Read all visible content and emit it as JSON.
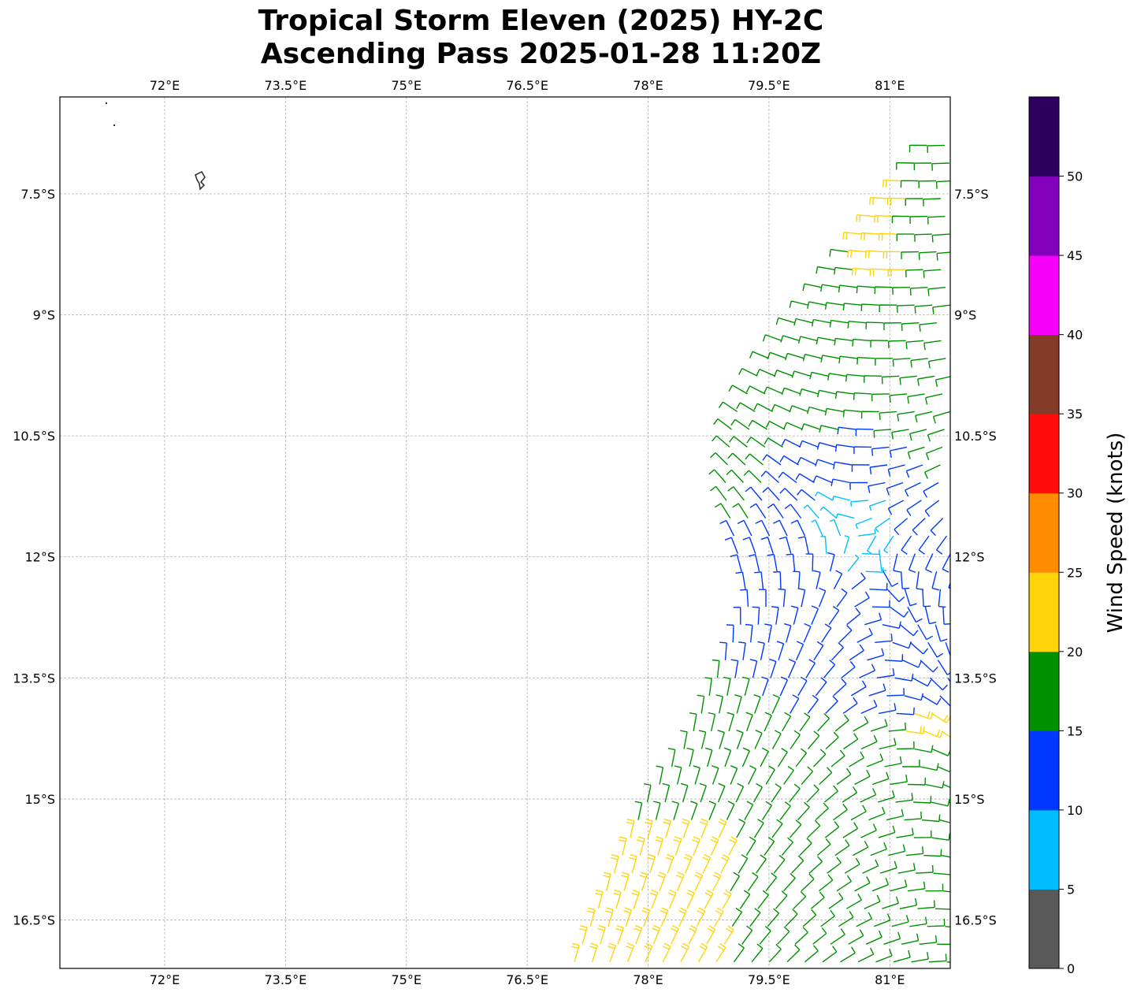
{
  "title": {
    "line1": "Tropical Storm Eleven (2025) HY-2C",
    "line2": "Ascending Pass 2025-01-28 11:20Z"
  },
  "map": {
    "lon_range": [
      70.7,
      81.75
    ],
    "lat_range": [
      -17.1,
      -6.3
    ],
    "lon_ticks": [
      {
        "value": 72,
        "label": "72°E"
      },
      {
        "value": 73.5,
        "label": "73.5°E"
      },
      {
        "value": 75,
        "label": "75°E"
      },
      {
        "value": 76.5,
        "label": "76.5°E"
      },
      {
        "value": 78,
        "label": "78°E"
      },
      {
        "value": 79.5,
        "label": "79.5°E"
      },
      {
        "value": 81,
        "label": "81°E"
      }
    ],
    "lat_ticks": [
      {
        "value": -7.5,
        "label": "7.5°S"
      },
      {
        "value": -9,
        "label": "9°S"
      },
      {
        "value": -10.5,
        "label": "10.5°S"
      },
      {
        "value": -12,
        "label": "12°S"
      },
      {
        "value": -13.5,
        "label": "13.5°S"
      },
      {
        "value": -15,
        "label": "15°S"
      },
      {
        "value": -16.5,
        "label": "16.5°S"
      }
    ],
    "gridlines": true,
    "storm_center": {
      "lon": 80.6,
      "lat": -11.7
    },
    "swath_edge": [
      {
        "lon": 81.45,
        "lat": -6.85
      },
      {
        "lon": 79.4,
        "lat": -9.6
      },
      {
        "lon": 79.0,
        "lat": -10.3
      },
      {
        "lon": 78.9,
        "lat": -11.2
      },
      {
        "lon": 79.2,
        "lat": -12.6
      },
      {
        "lon": 78.9,
        "lat": -13.3
      },
      {
        "lon": 78.45,
        "lat": -14.3
      },
      {
        "lon": 77.9,
        "lat": -15.1
      },
      {
        "lon": 77.0,
        "lat": -17.1
      }
    ]
  },
  "colorbar": {
    "label": "Wind Speed (knots)",
    "bins": [
      {
        "min": 0,
        "max": 5,
        "color": "#595959"
      },
      {
        "min": 5,
        "max": 10,
        "color": "#00bfff"
      },
      {
        "min": 10,
        "max": 15,
        "color": "#0038ff"
      },
      {
        "min": 15,
        "max": 20,
        "color": "#009100"
      },
      {
        "min": 20,
        "max": 25,
        "color": "#ffd40a"
      },
      {
        "min": 25,
        "max": 30,
        "color": "#ff8c00"
      },
      {
        "min": 30,
        "max": 35,
        "color": "#ff0d0d"
      },
      {
        "min": 35,
        "max": 40,
        "color": "#823c28"
      },
      {
        "min": 40,
        "max": 45,
        "color": "#f700f7"
      },
      {
        "min": 45,
        "max": 50,
        "color": "#8200ba"
      },
      {
        "min": 50,
        "max": 55,
        "color": "#2d0060"
      }
    ],
    "tick_labels": [
      "0",
      "5",
      "10",
      "15",
      "20",
      "25",
      "30",
      "35",
      "40",
      "45",
      "50"
    ]
  }
}
